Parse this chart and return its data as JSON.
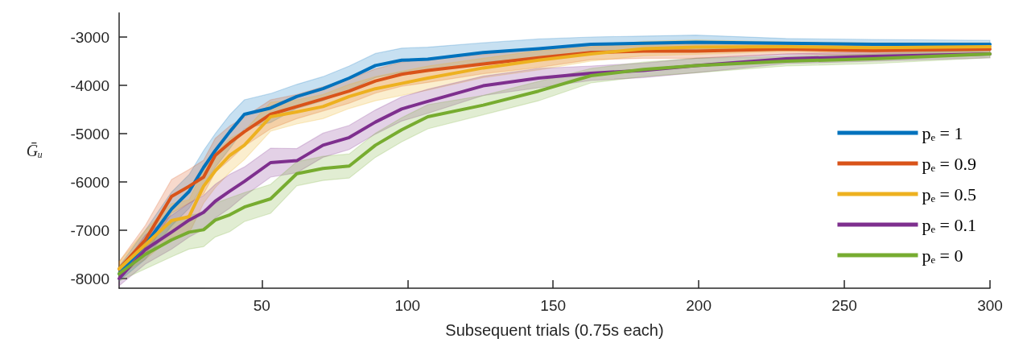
{
  "chart_data": {
    "type": "line",
    "xlabel": "Subsequent trials (0.75s each)",
    "ylabel": "Ḡᵤ",
    "xlim": [
      1,
      300
    ],
    "xticks": [
      50,
      100,
      150,
      200,
      250,
      300
    ],
    "ylim": [
      -8200,
      -2500
    ],
    "yticks": [
      -8000,
      -7000,
      -6000,
      -5000,
      -4000,
      -3000
    ],
    "grid": false,
    "legend": "bottom right",
    "line_style": "solid",
    "x": [
      1,
      10,
      19,
      25,
      30,
      34,
      39,
      44,
      53,
      62,
      71,
      80,
      89,
      98,
      107,
      126,
      145,
      163,
      181,
      199,
      230,
      260,
      300
    ],
    "series": [
      {
        "name": "pₑ = 1",
        "color": "#0072bd",
        "values": [
          -7900,
          -7300,
          -6560,
          -6200,
          -5700,
          -5350,
          -4960,
          -4600,
          -4470,
          -4230,
          -4070,
          -3850,
          -3590,
          -3480,
          -3460,
          -3320,
          -3240,
          -3150,
          -3130,
          -3110,
          -3130,
          -3150,
          -3150
        ],
        "lower": [
          -8050,
          -7600,
          -6910,
          -6550,
          -6050,
          -5700,
          -5310,
          -4900,
          -4770,
          -4480,
          -4320,
          -4100,
          -3840,
          -3730,
          -3710,
          -3520,
          -3440,
          -3300,
          -3280,
          -3260,
          -3230,
          -3250,
          -3230
        ],
        "upper": [
          -7750,
          -7000,
          -6210,
          -5850,
          -5350,
          -5000,
          -4610,
          -4300,
          -4170,
          -3980,
          -3820,
          -3600,
          -3340,
          -3230,
          -3210,
          -3120,
          -3040,
          -3000,
          -2980,
          -2960,
          -3030,
          -3050,
          -3070
        ]
      },
      {
        "name": "pₑ = 0.9",
        "color": "#d95319",
        "values": [
          -7800,
          -7200,
          -6300,
          -6090,
          -5900,
          -5450,
          -5190,
          -4960,
          -4600,
          -4440,
          -4280,
          -4120,
          -3910,
          -3770,
          -3690,
          -3560,
          -3430,
          -3320,
          -3290,
          -3290,
          -3250,
          -3280,
          -3250
        ],
        "lower": [
          -7950,
          -7500,
          -6650,
          -6440,
          -6250,
          -5800,
          -5540,
          -5260,
          -4900,
          -4690,
          -4530,
          -4370,
          -4160,
          -4020,
          -3940,
          -3760,
          -3630,
          -3470,
          -3440,
          -3440,
          -3350,
          -3380,
          -3330
        ],
        "upper": [
          -7650,
          -6900,
          -5950,
          -5740,
          -5550,
          -5100,
          -4840,
          -4660,
          -4300,
          -4190,
          -4030,
          -3870,
          -3660,
          -3520,
          -3440,
          -3360,
          -3230,
          -3170,
          -3140,
          -3140,
          -3150,
          -3180,
          -3170
        ]
      },
      {
        "name": "pₑ = 0.5",
        "color": "#edb120",
        "values": [
          -7800,
          -7300,
          -6800,
          -6720,
          -6090,
          -5770,
          -5450,
          -5240,
          -4650,
          -4550,
          -4440,
          -4230,
          -4070,
          -3960,
          -3850,
          -3640,
          -3480,
          -3350,
          -3240,
          -3210,
          -3200,
          -3220,
          -3200
        ],
        "lower": [
          -7950,
          -7600,
          -7150,
          -7070,
          -6440,
          -6120,
          -5800,
          -5540,
          -4950,
          -4800,
          -4690,
          -4480,
          -4320,
          -4210,
          -4100,
          -3840,
          -3680,
          -3500,
          -3390,
          -3360,
          -3300,
          -3320,
          -3280
        ],
        "upper": [
          -7650,
          -7000,
          -6450,
          -6370,
          -5740,
          -5420,
          -5100,
          -4940,
          -4350,
          -4300,
          -4190,
          -3980,
          -3820,
          -3710,
          -3600,
          -3440,
          -3280,
          -3200,
          -3090,
          -3060,
          -3100,
          -3120,
          -3120
        ]
      },
      {
        "name": "pₑ = 0.1",
        "color": "#7e2f8e",
        "values": [
          -8000,
          -7400,
          -7040,
          -6790,
          -6630,
          -6400,
          -6190,
          -5990,
          -5600,
          -5560,
          -5240,
          -5080,
          -4760,
          -4490,
          -4330,
          -4010,
          -3850,
          -3750,
          -3690,
          -3590,
          -3450,
          -3400,
          -3350
        ],
        "lower": [
          -8150,
          -7700,
          -7390,
          -7140,
          -6980,
          -6750,
          -6540,
          -6290,
          -5900,
          -5810,
          -5490,
          -5330,
          -5010,
          -4740,
          -4580,
          -4210,
          -4050,
          -3900,
          -3840,
          -3740,
          -3550,
          -3500,
          -3430
        ],
        "upper": [
          -7850,
          -7100,
          -6690,
          -6440,
          -6280,
          -6050,
          -5840,
          -5690,
          -5300,
          -5310,
          -4990,
          -4830,
          -4510,
          -4240,
          -4080,
          -3810,
          -3650,
          -3600,
          -3540,
          -3440,
          -3350,
          -3300,
          -3270
        ]
      },
      {
        "name": "pₑ = 0",
        "color": "#77ac30",
        "values": [
          -7900,
          -7500,
          -7200,
          -7040,
          -6990,
          -6790,
          -6680,
          -6520,
          -6350,
          -5830,
          -5720,
          -5670,
          -5240,
          -4920,
          -4650,
          -4410,
          -4120,
          -3800,
          -3670,
          -3590,
          -3500,
          -3450,
          -3350
        ],
        "lower": [
          -8050,
          -7800,
          -7550,
          -7390,
          -7340,
          -7140,
          -7030,
          -6820,
          -6650,
          -6080,
          -5970,
          -5920,
          -5490,
          -5170,
          -4900,
          -4610,
          -4320,
          -3950,
          -3820,
          -3740,
          -3600,
          -3550,
          -3430
        ],
        "upper": [
          -7750,
          -7200,
          -6850,
          -6690,
          -6640,
          -6440,
          -6330,
          -6220,
          -6050,
          -5580,
          -5470,
          -5420,
          -4990,
          -4670,
          -4400,
          -4210,
          -3920,
          -3650,
          -3520,
          -3440,
          -3400,
          -3350,
          -3270
        ]
      }
    ]
  }
}
